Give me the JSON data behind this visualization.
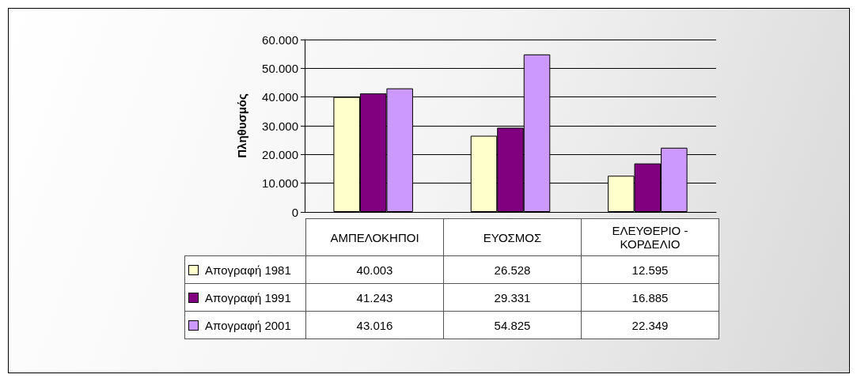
{
  "chart_data": {
    "type": "bar",
    "ylabel": "Πληθυσμός",
    "categories": [
      "ΑΜΠΕΛΟΚΗΠΟΙ",
      "ΕΥΟΣΜΟΣ",
      "ΕΛΕΥΘΕΡΙΟ - ΚΟΡΔΕΛΙΟ"
    ],
    "series": [
      {
        "name": "Απογραφή 1981",
        "color": "#ffffcc",
        "values": [
          40003,
          26528,
          12595
        ],
        "value_labels": [
          "40.003",
          "26.528",
          "12.595"
        ]
      },
      {
        "name": "Απογραφή 1991",
        "color": "#800080",
        "values": [
          41243,
          29331,
          16885
        ],
        "value_labels": [
          "41.243",
          "29.331",
          "16.885"
        ]
      },
      {
        "name": "Απογραφή 2001",
        "color": "#cc99ff",
        "values": [
          43016,
          54825,
          22349
        ],
        "value_labels": [
          "43.016",
          "54.825",
          "22.349"
        ]
      }
    ],
    "ylim": [
      0,
      60000
    ],
    "yticks": [
      0,
      {
        "value": 10000,
        "label": "10.000"
      },
      {
        "value": 20000,
        "label": "20.000"
      },
      {
        "value": 30000,
        "label": "30.000"
      },
      {
        "value": 40000,
        "label": "40.000"
      },
      {
        "value": 50000,
        "label": "50.000"
      },
      {
        "value": 60000,
        "label": "60.000"
      }
    ],
    "grid": "y",
    "legend": "bottom left"
  }
}
